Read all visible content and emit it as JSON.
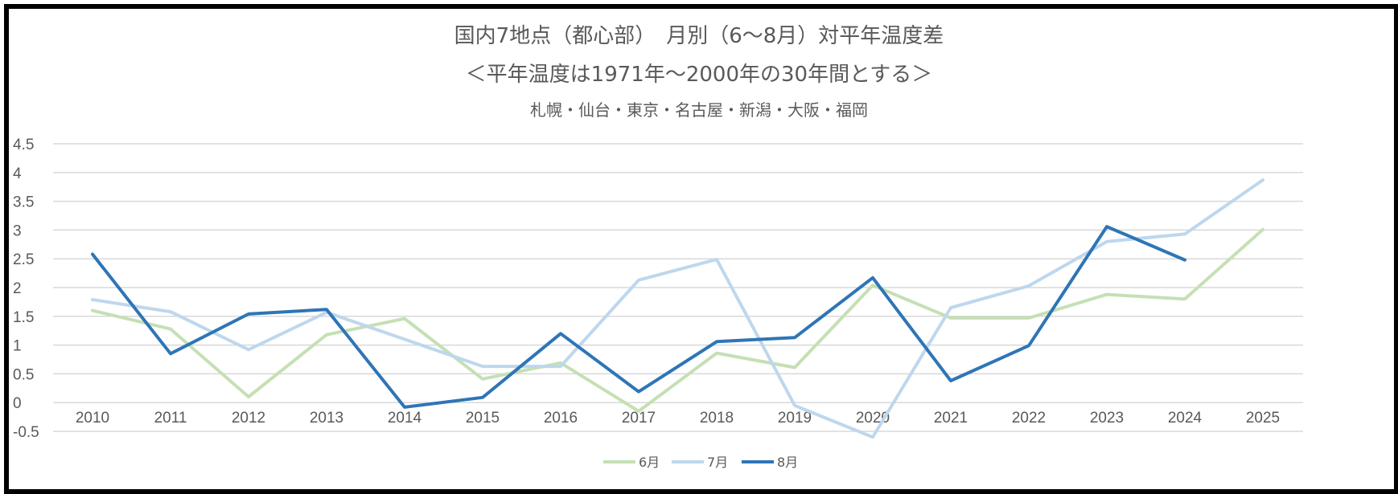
{
  "chart_data": {
    "type": "line",
    "title": "国内7地点（都心部）　月別（6～8月）対平年温度差",
    "subtitle": "＜平年温度は1971年～2000年の30年間とする＞",
    "subtitle2": "札幌・仙台・東京・名古屋・新潟・大阪・福岡",
    "xlabel": "",
    "ylabel": "",
    "ylim": [
      -0.5,
      4.5
    ],
    "yticks": [
      "4.5",
      "4",
      "3.5",
      "3",
      "2.5",
      "2",
      "1.5",
      "1",
      "0.5",
      "0",
      "-0.5"
    ],
    "categories": [
      "2010",
      "2011",
      "2012",
      "2013",
      "2014",
      "2015",
      "2016",
      "2017",
      "2018",
      "2019",
      "2020",
      "2021",
      "2022",
      "2023",
      "2024",
      "2025"
    ],
    "grid": true,
    "legend_position": "bottom",
    "series": [
      {
        "name": "6月",
        "color": "#c5e0b4",
        "values": [
          1.6,
          1.28,
          0.1,
          1.18,
          1.46,
          0.41,
          0.69,
          -0.15,
          0.86,
          0.61,
          2.04,
          1.47,
          1.47,
          1.88,
          1.8,
          3.01
        ]
      },
      {
        "name": "7月",
        "color": "#bdd7ee",
        "values": [
          1.79,
          1.58,
          0.92,
          1.57,
          1.1,
          0.63,
          0.63,
          2.13,
          2.49,
          -0.05,
          -0.6,
          1.65,
          2.03,
          2.8,
          2.93,
          3.87
        ]
      },
      {
        "name": "8月",
        "color": "#2e75b6",
        "values": [
          2.58,
          0.85,
          1.54,
          1.62,
          -0.08,
          0.09,
          1.2,
          0.19,
          1.06,
          1.13,
          2.17,
          0.38,
          0.99,
          3.06,
          2.48,
          null
        ]
      }
    ]
  }
}
